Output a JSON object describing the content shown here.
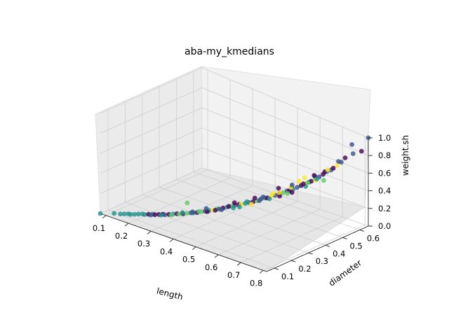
{
  "chart_data": {
    "type": "scatter",
    "title": "aba-my_kmedians",
    "xlabel": "length",
    "ylabel": "diameter",
    "zlabel": "weight.sh",
    "x_ticks": [
      "0.1",
      "0.2",
      "0.3",
      "0.4",
      "0.5",
      "0.6",
      "0.7",
      "0.8"
    ],
    "y_ticks": [
      "0.1",
      "0.2",
      "0.3",
      "0.4",
      "0.5",
      "0.6"
    ],
    "z_ticks": [
      "0.0",
      "0.2",
      "0.4",
      "0.6",
      "0.8",
      "1.0"
    ],
    "xlim": [
      0.075,
      0.815
    ],
    "ylim": [
      0.055,
      0.65
    ],
    "zlim": [
      0.0,
      1.005
    ],
    "grid": true,
    "cluster_colors": [
      "#440154",
      "#3b528b",
      "#21918c",
      "#5ec962",
      "#fde725"
    ],
    "points": [
      [
        0.075,
        0.055,
        0.0,
        2
      ],
      [
        0.11,
        0.09,
        0.002,
        2
      ],
      [
        0.13,
        0.1,
        0.004,
        2
      ],
      [
        0.14,
        0.11,
        0.005,
        2
      ],
      [
        0.15,
        0.12,
        0.006,
        2
      ],
      [
        0.16,
        0.12,
        0.008,
        2
      ],
      [
        0.17,
        0.13,
        0.01,
        2
      ],
      [
        0.18,
        0.14,
        0.012,
        2
      ],
      [
        0.19,
        0.15,
        0.013,
        2
      ],
      [
        0.2,
        0.15,
        0.015,
        2
      ],
      [
        0.21,
        0.16,
        0.018,
        0
      ],
      [
        0.22,
        0.17,
        0.02,
        2
      ],
      [
        0.23,
        0.17,
        0.022,
        0
      ],
      [
        0.24,
        0.18,
        0.025,
        0
      ],
      [
        0.25,
        0.19,
        0.028,
        0
      ],
      [
        0.26,
        0.19,
        0.03,
        1
      ],
      [
        0.27,
        0.2,
        0.034,
        0
      ],
      [
        0.28,
        0.21,
        0.038,
        2
      ],
      [
        0.29,
        0.22,
        0.042,
        0
      ],
      [
        0.3,
        0.22,
        0.046,
        3
      ],
      [
        0.31,
        0.23,
        0.05,
        0
      ],
      [
        0.32,
        0.24,
        0.056,
        3
      ],
      [
        0.33,
        0.25,
        0.06,
        1
      ],
      [
        0.34,
        0.25,
        0.066,
        2
      ],
      [
        0.35,
        0.26,
        0.072,
        0
      ],
      [
        0.36,
        0.27,
        0.08,
        3
      ],
      [
        0.37,
        0.28,
        0.086,
        1
      ],
      [
        0.38,
        0.29,
        0.094,
        2
      ],
      [
        0.39,
        0.3,
        0.1,
        4
      ],
      [
        0.4,
        0.31,
        0.11,
        3
      ],
      [
        0.41,
        0.31,
        0.12,
        1
      ],
      [
        0.42,
        0.32,
        0.13,
        0
      ],
      [
        0.43,
        0.33,
        0.14,
        2
      ],
      [
        0.44,
        0.34,
        0.15,
        3
      ],
      [
        0.45,
        0.35,
        0.16,
        1
      ],
      [
        0.46,
        0.36,
        0.17,
        0
      ],
      [
        0.47,
        0.36,
        0.18,
        4
      ],
      [
        0.48,
        0.37,
        0.19,
        2
      ],
      [
        0.49,
        0.38,
        0.2,
        1
      ],
      [
        0.5,
        0.39,
        0.21,
        0
      ],
      [
        0.51,
        0.4,
        0.22,
        3
      ],
      [
        0.52,
        0.41,
        0.24,
        1
      ],
      [
        0.53,
        0.42,
        0.25,
        2
      ],
      [
        0.54,
        0.42,
        0.26,
        0
      ],
      [
        0.55,
        0.43,
        0.28,
        4
      ],
      [
        0.56,
        0.44,
        0.29,
        1
      ],
      [
        0.57,
        0.45,
        0.31,
        0
      ],
      [
        0.58,
        0.46,
        0.32,
        3
      ],
      [
        0.59,
        0.47,
        0.34,
        1
      ],
      [
        0.6,
        0.47,
        0.35,
        0
      ],
      [
        0.61,
        0.48,
        0.37,
        2
      ],
      [
        0.62,
        0.49,
        0.39,
        1
      ],
      [
        0.63,
        0.5,
        0.41,
        0
      ],
      [
        0.64,
        0.51,
        0.43,
        4
      ],
      [
        0.65,
        0.52,
        0.45,
        1
      ],
      [
        0.66,
        0.52,
        0.47,
        0
      ],
      [
        0.67,
        0.53,
        0.49,
        3
      ],
      [
        0.68,
        0.54,
        0.52,
        1
      ],
      [
        0.69,
        0.55,
        0.55,
        0
      ],
      [
        0.7,
        0.56,
        0.58,
        2
      ],
      [
        0.71,
        0.57,
        0.6,
        1
      ],
      [
        0.72,
        0.57,
        0.63,
        0
      ],
      [
        0.73,
        0.58,
        0.66,
        4
      ],
      [
        0.74,
        0.59,
        0.7,
        1
      ],
      [
        0.75,
        0.6,
        0.75,
        0
      ],
      [
        0.77,
        0.62,
        0.8,
        1
      ],
      [
        0.8,
        0.63,
        0.85,
        0
      ],
      [
        0.815,
        0.65,
        1.0,
        1
      ],
      [
        0.78,
        0.6,
        0.93,
        1
      ],
      [
        0.3,
        0.24,
        0.045,
        2
      ],
      [
        0.35,
        0.27,
        0.075,
        3
      ],
      [
        0.4,
        0.3,
        0.105,
        0
      ],
      [
        0.45,
        0.34,
        0.14,
        2
      ],
      [
        0.5,
        0.38,
        0.19,
        4
      ],
      [
        0.55,
        0.42,
        0.26,
        2
      ],
      [
        0.6,
        0.46,
        0.33,
        3
      ],
      [
        0.65,
        0.5,
        0.42,
        2
      ],
      [
        0.7,
        0.54,
        0.5,
        3
      ],
      [
        0.62,
        0.5,
        0.45,
        4
      ],
      [
        0.58,
        0.44,
        0.3,
        0
      ],
      [
        0.52,
        0.4,
        0.23,
        1
      ],
      [
        0.47,
        0.35,
        0.16,
        2
      ],
      [
        0.42,
        0.31,
        0.12,
        1
      ],
      [
        0.38,
        0.28,
        0.09,
        0
      ],
      [
        0.33,
        0.26,
        0.062,
        1
      ],
      [
        0.28,
        0.2,
        0.036,
        3
      ],
      [
        0.25,
        0.18,
        0.026,
        2
      ],
      [
        0.22,
        0.16,
        0.019,
        1
      ],
      [
        0.36,
        0.3,
        0.09,
        1
      ],
      [
        0.43,
        0.34,
        0.14,
        0
      ],
      [
        0.48,
        0.38,
        0.2,
        2
      ],
      [
        0.53,
        0.41,
        0.27,
        1
      ],
      [
        0.57,
        0.45,
        0.32,
        4
      ],
      [
        0.61,
        0.47,
        0.4,
        1
      ],
      [
        0.64,
        0.5,
        0.44,
        0
      ],
      [
        0.67,
        0.53,
        0.52,
        1
      ],
      [
        0.69,
        0.56,
        0.57,
        0
      ],
      [
        0.71,
        0.55,
        0.62,
        4
      ],
      [
        0.6,
        0.48,
        0.38,
        4
      ],
      [
        0.55,
        0.44,
        0.3,
        4
      ],
      [
        0.63,
        0.52,
        0.48,
        4
      ],
      [
        0.66,
        0.5,
        0.47,
        3
      ],
      [
        0.68,
        0.52,
        0.5,
        4
      ],
      [
        0.26,
        0.32,
        0.05,
        3
      ],
      [
        0.44,
        0.36,
        0.17,
        0
      ],
      [
        0.5,
        0.4,
        0.24,
        0
      ],
      [
        0.56,
        0.46,
        0.35,
        0
      ],
      [
        0.62,
        0.46,
        0.36,
        0
      ],
      [
        0.59,
        0.5,
        0.38,
        1
      ],
      [
        0.65,
        0.55,
        0.5,
        0
      ],
      [
        0.72,
        0.6,
        0.68,
        1
      ],
      [
        0.7,
        0.5,
        0.55,
        2
      ]
    ]
  }
}
